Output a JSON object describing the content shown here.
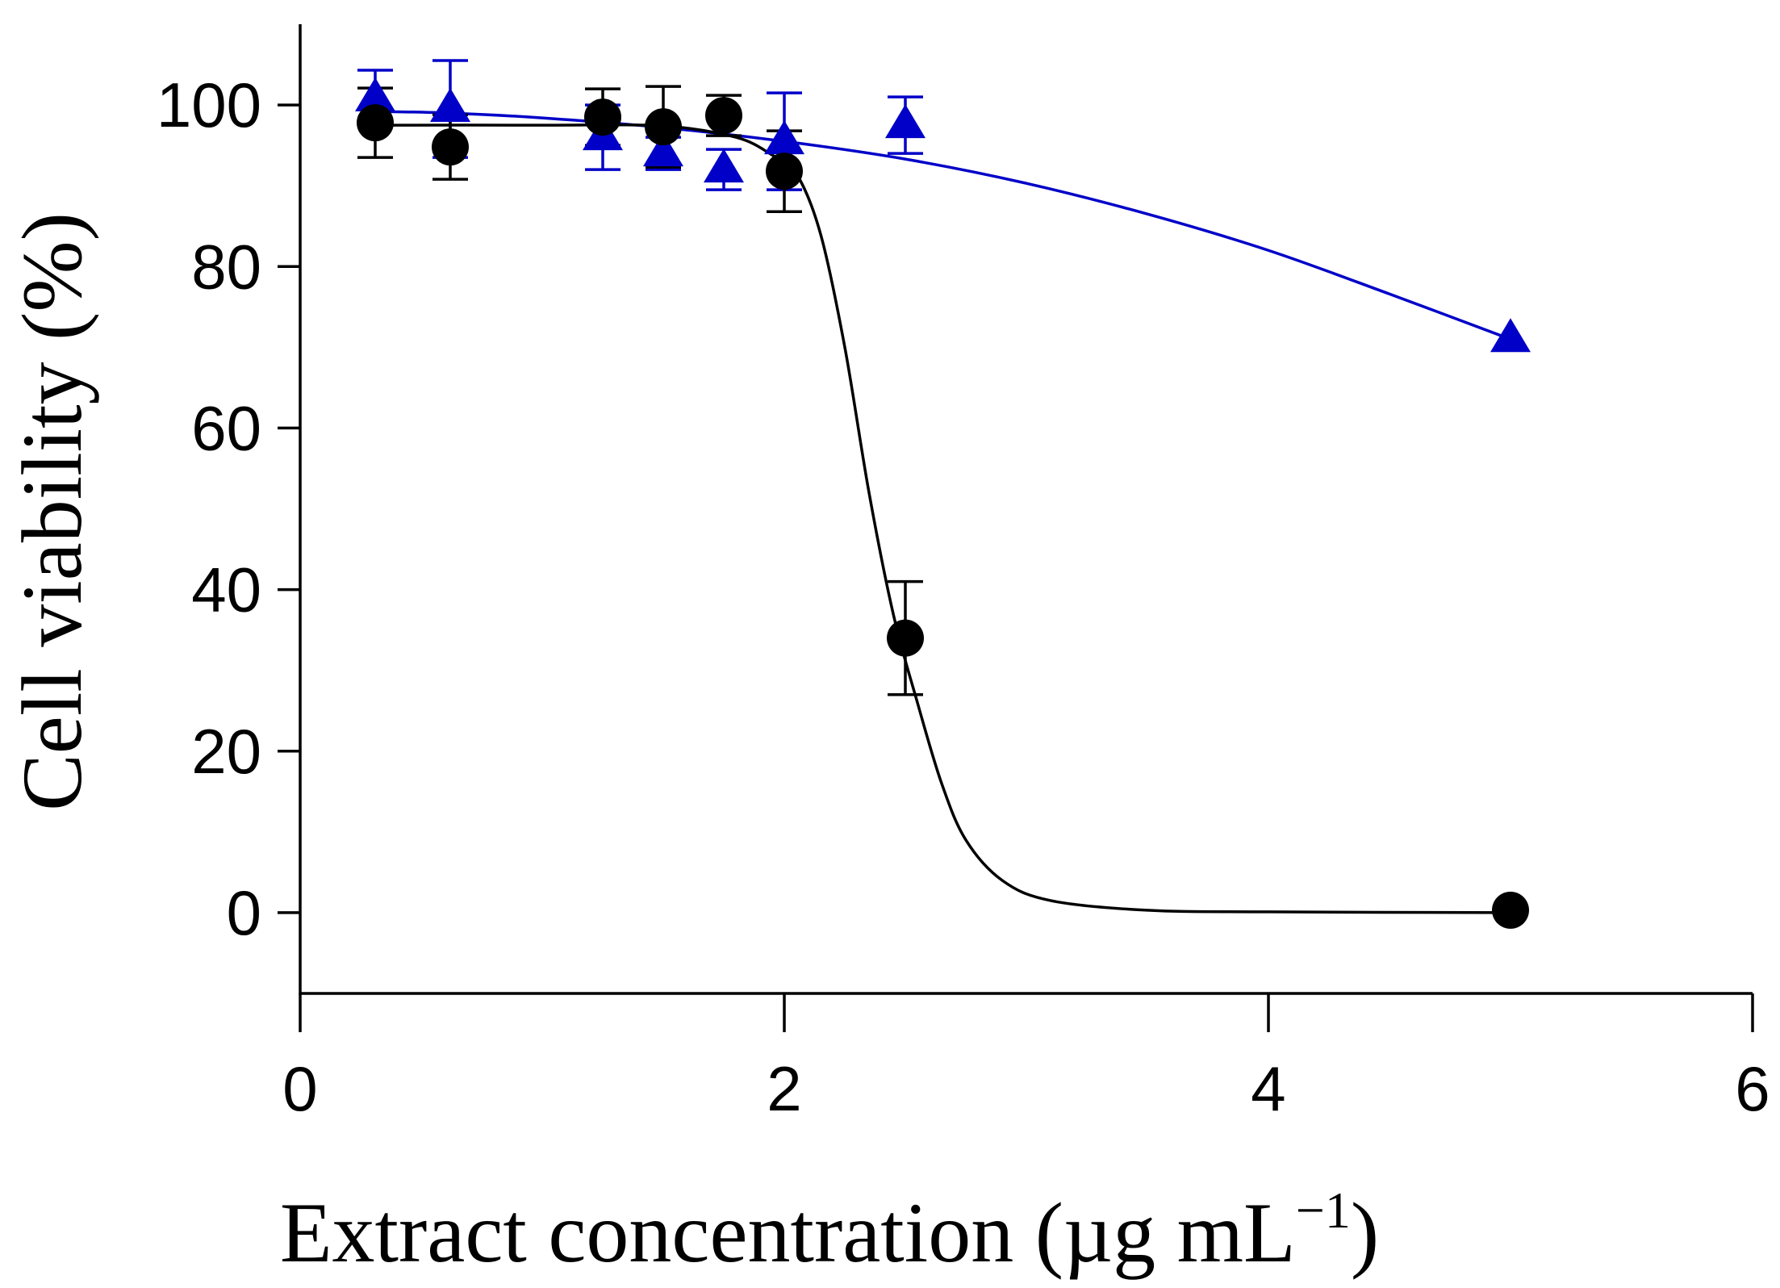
{
  "chart_data": {
    "type": "scatter",
    "xlabel": "Extract concentration (µg mL",
    "xlabel_superscript": "−1",
    "xlabel_close": ")",
    "ylabel": "Cell viability (%)",
    "xlim": [
      0,
      6
    ],
    "ylim": [
      -10,
      110
    ],
    "xticks": [
      0,
      2,
      4,
      6
    ],
    "yticks": [
      0,
      20,
      40,
      60,
      80,
      100
    ],
    "xtick_labels": [
      "0",
      "2",
      "4",
      "6"
    ],
    "ytick_labels": [
      "0",
      "20",
      "40",
      "60",
      "80",
      "100"
    ],
    "series": [
      {
        "name": "triangle-series",
        "marker": "triangle",
        "color": "#0000c8",
        "x": [
          0.31,
          0.62,
          1.25,
          1.5,
          1.75,
          2.0,
          2.5,
          5.0
        ],
        "y": [
          100.8,
          99.5,
          96.0,
          94.0,
          92.0,
          95.5,
          97.5,
          71.0
        ],
        "err": [
          3.5,
          6.0,
          4.0,
          2.0,
          2.5,
          6.0,
          3.5,
          0
        ],
        "fit": [
          [
            0.31,
            99.2
          ],
          [
            0.62,
            99.0
          ],
          [
            1.0,
            98.4
          ],
          [
            1.5,
            97.2
          ],
          [
            2.0,
            95.5
          ],
          [
            2.5,
            93.3
          ],
          [
            3.0,
            90.3
          ],
          [
            3.5,
            86.5
          ],
          [
            4.0,
            82.0
          ],
          [
            4.5,
            76.6
          ],
          [
            5.0,
            71.0
          ]
        ]
      },
      {
        "name": "circle-series",
        "marker": "circle",
        "color": "#000000",
        "x": [
          0.31,
          0.62,
          1.25,
          1.5,
          1.75,
          2.0,
          2.5,
          5.0
        ],
        "y": [
          97.8,
          94.8,
          98.5,
          97.3,
          98.7,
          91.8,
          34.0,
          0.3
        ],
        "err": [
          4.3,
          4.0,
          3.5,
          5.0,
          2.5,
          5.0,
          7.0,
          0
        ],
        "fit": [
          [
            0.31,
            97.5
          ],
          [
            1.0,
            97.5
          ],
          [
            1.5,
            97.4
          ],
          [
            1.8,
            96.0
          ],
          [
            1.95,
            93.8
          ],
          [
            2.05,
            91.5
          ],
          [
            2.15,
            84.0
          ],
          [
            2.25,
            70.0
          ],
          [
            2.35,
            52.0
          ],
          [
            2.45,
            37.0
          ],
          [
            2.55,
            26.0
          ],
          [
            2.65,
            16.0
          ],
          [
            2.75,
            9.0
          ],
          [
            2.9,
            4.0
          ],
          [
            3.1,
            1.5
          ],
          [
            3.5,
            0.3
          ],
          [
            4.0,
            0.1
          ],
          [
            5.0,
            0.0
          ]
        ]
      }
    ]
  }
}
